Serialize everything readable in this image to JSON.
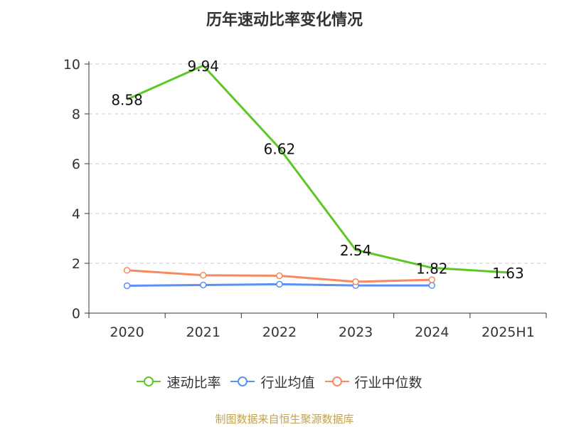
{
  "page": {
    "title": "历年速动比率变化情况",
    "source": "制图数据来自恒生聚源数据库"
  },
  "colors": {
    "series1": "#5cc726",
    "series2": "#5b8ff9",
    "series3": "#f7895c",
    "axis": "#333333",
    "grid": "#cccccc"
  },
  "chart_data": {
    "type": "line",
    "title": "历年速动比率变化情况",
    "xlabel": "",
    "ylabel": "",
    "categories": [
      "2020",
      "2021",
      "2022",
      "2023",
      "2024",
      "2025H1"
    ],
    "ylim": [
      0,
      10
    ],
    "yticks": [
      "0",
      "2",
      "4",
      "6",
      "8",
      "10"
    ],
    "grid": "horizontal-dashed",
    "legend": "bottom",
    "series": [
      {
        "name": "速动比率",
        "values": [
          8.58,
          9.94,
          6.62,
          2.54,
          1.82,
          1.63
        ],
        "labels": [
          "8.58",
          "9.94",
          "6.62",
          "2.54",
          "1.82",
          "1.63"
        ]
      },
      {
        "name": "行业均值",
        "values": [
          1.1,
          1.13,
          1.16,
          1.11,
          1.11,
          null
        ]
      },
      {
        "name": "行业中位数",
        "values": [
          1.72,
          1.52,
          1.5,
          1.26,
          1.34,
          null
        ]
      }
    ]
  }
}
